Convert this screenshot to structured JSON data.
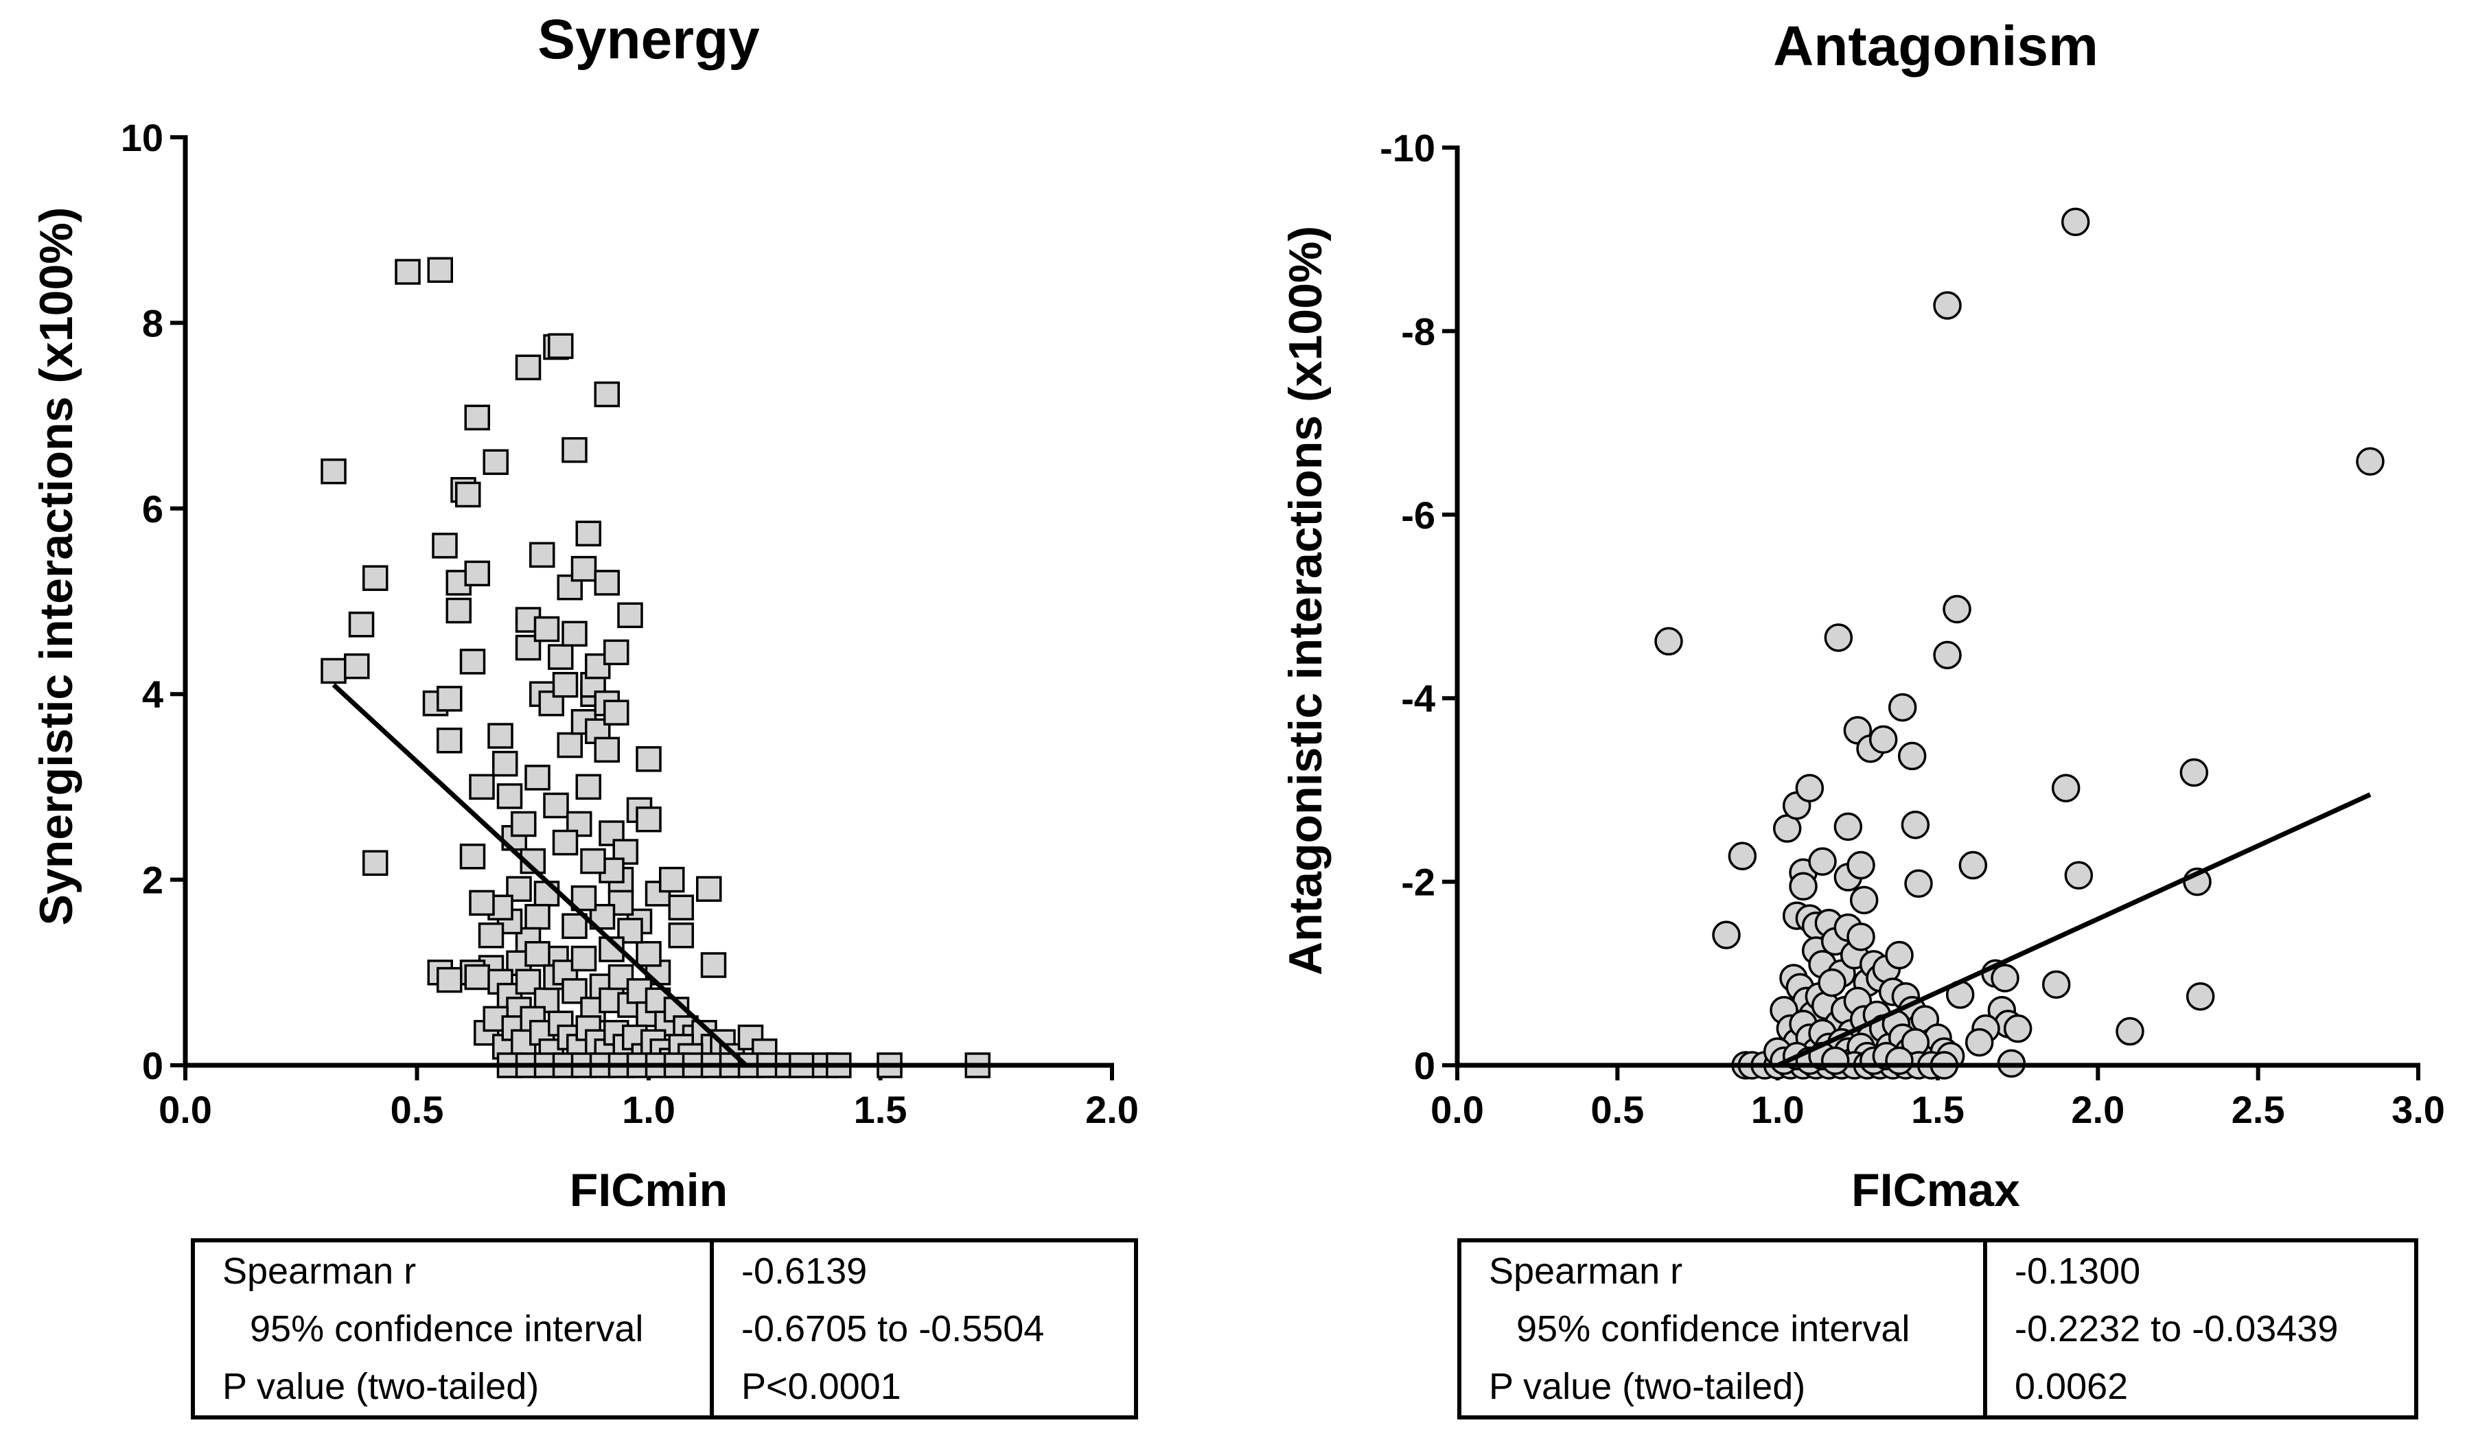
{
  "chart_data": [
    {
      "type": "scatter",
      "title": "Synergy",
      "xlabel": "FICmin",
      "ylabel": "Synergistic interactions (x100%)",
      "xlim": [
        0.0,
        2.0
      ],
      "ylim": [
        0,
        10
      ],
      "y_reversed": false,
      "marker": "square",
      "xticks": [
        "0.0",
        "0.5",
        "1.0",
        "1.5",
        "2.0"
      ],
      "yticks": [
        "0",
        "2",
        "4",
        "6",
        "8",
        "10"
      ],
      "fit_line": {
        "x": [
          0.32,
          1.21
        ],
        "y": [
          4.1,
          0.0
        ]
      },
      "points": [
        [
          0.32,
          6.4
        ],
        [
          0.32,
          4.25
        ],
        [
          0.37,
          4.3
        ],
        [
          0.38,
          4.75
        ],
        [
          0.41,
          5.25
        ],
        [
          0.41,
          2.18
        ],
        [
          0.48,
          8.55
        ],
        [
          0.55,
          8.57
        ],
        [
          0.54,
          3.9
        ],
        [
          0.56,
          5.6
        ],
        [
          0.57,
          3.95
        ],
        [
          0.57,
          3.5
        ],
        [
          0.59,
          5.2
        ],
        [
          0.59,
          4.9
        ],
        [
          0.6,
          6.2
        ],
        [
          0.61,
          6.15
        ],
        [
          0.62,
          2.25
        ],
        [
          0.62,
          4.35
        ],
        [
          0.63,
          5.3
        ],
        [
          0.63,
          6.98
        ],
        [
          0.64,
          3.0
        ],
        [
          0.67,
          6.5
        ],
        [
          0.68,
          3.55
        ],
        [
          0.69,
          3.25
        ],
        [
          0.7,
          2.9
        ],
        [
          0.71,
          2.45
        ],
        [
          0.72,
          1.9
        ],
        [
          0.73,
          2.6
        ],
        [
          0.74,
          7.52
        ],
        [
          0.74,
          4.8
        ],
        [
          0.74,
          4.5
        ],
        [
          0.75,
          2.2
        ],
        [
          0.76,
          3.1
        ],
        [
          0.77,
          5.5
        ],
        [
          0.77,
          4.0
        ],
        [
          0.78,
          4.7
        ],
        [
          0.79,
          3.9
        ],
        [
          0.8,
          7.74
        ],
        [
          0.8,
          2.8
        ],
        [
          0.81,
          7.75
        ],
        [
          0.81,
          4.4
        ],
        [
          0.82,
          4.1
        ],
        [
          0.83,
          5.15
        ],
        [
          0.83,
          3.45
        ],
        [
          0.84,
          4.65
        ],
        [
          0.84,
          6.63
        ],
        [
          0.85,
          2.6
        ],
        [
          0.86,
          3.7
        ],
        [
          0.86,
          5.35
        ],
        [
          0.87,
          5.73
        ],
        [
          0.87,
          3.0
        ],
        [
          0.88,
          4.0
        ],
        [
          0.88,
          4.1
        ],
        [
          0.89,
          3.6
        ],
        [
          0.89,
          4.3
        ],
        [
          0.91,
          7.23
        ],
        [
          0.91,
          5.2
        ],
        [
          0.91,
          3.9
        ],
        [
          0.91,
          3.4
        ],
        [
          0.92,
          2.5
        ],
        [
          0.93,
          3.8
        ],
        [
          0.93,
          4.45
        ],
        [
          0.94,
          2.0
        ],
        [
          0.95,
          2.3
        ],
        [
          0.96,
          4.85
        ],
        [
          0.98,
          2.75
        ],
        [
          1.0,
          3.3
        ],
        [
          1.0,
          2.65
        ],
        [
          1.02,
          1.85
        ],
        [
          1.05,
          2.0
        ],
        [
          1.07,
          1.7
        ],
        [
          1.07,
          1.4
        ],
        [
          1.13,
          1.9
        ],
        [
          1.14,
          1.08
        ],
        [
          1.02,
          1.0
        ],
        [
          0.98,
          1.55
        ],
        [
          1.0,
          1.2
        ],
        [
          0.96,
          1.45
        ],
        [
          0.94,
          1.75
        ],
        [
          0.92,
          1.25
        ],
        [
          0.92,
          2.1
        ],
        [
          0.9,
          1.6
        ],
        [
          0.88,
          2.2
        ],
        [
          0.86,
          1.8
        ],
        [
          0.84,
          1.5
        ],
        [
          0.82,
          2.4
        ],
        [
          0.8,
          1.15
        ],
        [
          0.78,
          1.85
        ],
        [
          0.76,
          1.6
        ],
        [
          0.74,
          1.35
        ],
        [
          0.72,
          1.1
        ],
        [
          0.7,
          1.55
        ],
        [
          0.68,
          1.7
        ],
        [
          0.66,
          1.05
        ],
        [
          0.64,
          1.75
        ],
        [
          0.62,
          1.0
        ],
        [
          0.55,
          1.0
        ],
        [
          0.57,
          0.92
        ],
        [
          0.63,
          0.95
        ],
        [
          0.66,
          1.4
        ],
        [
          0.68,
          0.9
        ],
        [
          0.7,
          0.75
        ],
        [
          0.72,
          0.6
        ],
        [
          0.74,
          0.9
        ],
        [
          0.76,
          1.2
        ],
        [
          0.78,
          0.7
        ],
        [
          0.8,
          0.95
        ],
        [
          0.82,
          1.0
        ],
        [
          0.84,
          0.8
        ],
        [
          0.86,
          1.15
        ],
        [
          0.88,
          0.6
        ],
        [
          0.9,
          0.85
        ],
        [
          0.92,
          0.7
        ],
        [
          0.94,
          0.95
        ],
        [
          0.96,
          0.65
        ],
        [
          0.98,
          0.8
        ],
        [
          1.0,
          0.55
        ],
        [
          1.02,
          0.7
        ],
        [
          1.04,
          0.45
        ],
        [
          1.06,
          0.6
        ],
        [
          1.08,
          0.4
        ],
        [
          1.1,
          0.3
        ],
        [
          1.12,
          0.35
        ],
        [
          1.14,
          0.2
        ],
        [
          1.16,
          0.25
        ],
        [
          1.18,
          0.1
        ],
        [
          1.22,
          0.3
        ],
        [
          1.25,
          0.15
        ],
        [
          0.65,
          0.35
        ],
        [
          0.67,
          0.5
        ],
        [
          0.69,
          0.2
        ],
        [
          0.71,
          0.4
        ],
        [
          0.73,
          0.25
        ],
        [
          0.75,
          0.5
        ],
        [
          0.77,
          0.35
        ],
        [
          0.79,
          0.15
        ],
        [
          0.81,
          0.45
        ],
        [
          0.83,
          0.3
        ],
        [
          0.85,
          0.2
        ],
        [
          0.87,
          0.4
        ],
        [
          0.89,
          0.25
        ],
        [
          0.91,
          0.15
        ],
        [
          0.93,
          0.35
        ],
        [
          0.95,
          0.2
        ],
        [
          0.97,
          0.3
        ],
        [
          0.99,
          0.1
        ],
        [
          1.01,
          0.25
        ],
        [
          1.03,
          0.15
        ],
        [
          1.05,
          0.05
        ],
        [
          1.07,
          0.2
        ],
        [
          1.09,
          0.1
        ],
        [
          0.7,
          0.0
        ],
        [
          0.74,
          0.0
        ],
        [
          0.78,
          0.0
        ],
        [
          0.82,
          0.0
        ],
        [
          0.86,
          0.0
        ],
        [
          0.9,
          0.0
        ],
        [
          0.94,
          0.0
        ],
        [
          0.98,
          0.0
        ],
        [
          1.02,
          0.0
        ],
        [
          1.06,
          0.0
        ],
        [
          1.1,
          0.0
        ],
        [
          1.14,
          0.0
        ],
        [
          1.18,
          0.0
        ],
        [
          1.22,
          0.0
        ],
        [
          1.26,
          0.0
        ],
        [
          1.3,
          0.0
        ],
        [
          1.33,
          0.0
        ],
        [
          1.38,
          0.0
        ],
        [
          1.41,
          0.0
        ],
        [
          1.52,
          0.0
        ],
        [
          1.71,
          0.0
        ]
      ],
      "stats": {
        "rows": [
          {
            "label": "Spearman r",
            "value": "-0.6139"
          },
          {
            "label": "95% confidence interval",
            "value": "-0.6705 to -0.5504"
          },
          {
            "label": "P value (two-tailed)",
            "value": "P<0.0001"
          }
        ]
      }
    },
    {
      "type": "scatter",
      "title": "Antagonism",
      "xlabel": "FICmax",
      "ylabel": "Antagonistic interactions (x100%)",
      "xlim": [
        0.0,
        3.0
      ],
      "ylim": [
        0,
        -10
      ],
      "y_reversed": true,
      "marker": "circle",
      "xticks": [
        "0.0",
        "0.5",
        "1.0",
        "1.5",
        "2.0",
        "2.5",
        "3.0"
      ],
      "yticks": [
        "0",
        "-2",
        "-4",
        "-6",
        "-8",
        "-10"
      ],
      "fit_line": {
        "x": [
          1.0,
          2.85
        ],
        "y": [
          0.0,
          -2.95
        ]
      },
      "points": [
        [
          0.66,
          -4.62
        ],
        [
          0.84,
          -1.42
        ],
        [
          0.89,
          -2.28
        ],
        [
          1.03,
          -2.58
        ],
        [
          1.06,
          -2.83
        ],
        [
          1.1,
          -3.02
        ],
        [
          1.06,
          -1.63
        ],
        [
          1.08,
          -2.1
        ],
        [
          1.08,
          -1.95
        ],
        [
          1.1,
          -1.6
        ],
        [
          1.12,
          -1.52
        ],
        [
          1.14,
          -2.22
        ],
        [
          1.16,
          -1.55
        ],
        [
          1.19,
          -4.66
        ],
        [
          1.22,
          -2.6
        ],
        [
          1.22,
          -2.05
        ],
        [
          1.25,
          -3.65
        ],
        [
          1.26,
          -2.18
        ],
        [
          1.27,
          -1.8
        ],
        [
          1.29,
          -3.45
        ],
        [
          1.33,
          -3.55
        ],
        [
          1.39,
          -3.9
        ],
        [
          1.42,
          -3.37
        ],
        [
          1.43,
          -2.62
        ],
        [
          1.44,
          -1.98
        ],
        [
          1.53,
          -8.28
        ],
        [
          1.53,
          -4.47
        ],
        [
          1.56,
          -4.97
        ],
        [
          1.61,
          -2.18
        ],
        [
          1.57,
          -0.77
        ],
        [
          1.68,
          -1.0
        ],
        [
          1.71,
          -0.95
        ],
        [
          1.7,
          -0.6
        ],
        [
          1.72,
          -0.45
        ],
        [
          1.75,
          -0.4
        ],
        [
          1.65,
          -0.4
        ],
        [
          1.63,
          -0.25
        ],
        [
          1.73,
          -0.02
        ],
        [
          1.87,
          -0.88
        ],
        [
          1.9,
          -3.02
        ],
        [
          1.93,
          -9.19
        ],
        [
          1.94,
          -2.07
        ],
        [
          2.1,
          -0.37
        ],
        [
          2.3,
          -3.19
        ],
        [
          2.31,
          -2.0
        ],
        [
          2.32,
          -0.75
        ],
        [
          2.85,
          -6.58
        ],
        [
          1.12,
          -1.25
        ],
        [
          1.14,
          -1.1
        ],
        [
          1.18,
          -1.35
        ],
        [
          1.2,
          -1.0
        ],
        [
          1.22,
          -1.5
        ],
        [
          1.24,
          -1.2
        ],
        [
          1.26,
          -1.4
        ],
        [
          1.28,
          -0.9
        ],
        [
          1.3,
          -1.1
        ],
        [
          1.32,
          -0.95
        ],
        [
          1.34,
          -1.05
        ],
        [
          1.36,
          -0.8
        ],
        [
          1.38,
          -1.2
        ],
        [
          1.4,
          -0.75
        ],
        [
          1.42,
          -0.6
        ],
        [
          1.44,
          -0.4
        ],
        [
          1.46,
          -0.5
        ],
        [
          1.48,
          -0.25
        ],
        [
          1.5,
          -0.3
        ],
        [
          1.52,
          -0.15
        ],
        [
          1.54,
          -0.1
        ],
        [
          1.05,
          -0.95
        ],
        [
          1.07,
          -0.85
        ],
        [
          1.09,
          -0.7
        ],
        [
          1.11,
          -0.55
        ],
        [
          1.13,
          -0.75
        ],
        [
          1.15,
          -0.65
        ],
        [
          1.17,
          -0.9
        ],
        [
          1.19,
          -0.45
        ],
        [
          1.21,
          -0.6
        ],
        [
          1.23,
          -0.35
        ],
        [
          1.25,
          -0.7
        ],
        [
          1.27,
          -0.5
        ],
        [
          1.29,
          -0.3
        ],
        [
          1.31,
          -0.55
        ],
        [
          1.33,
          -0.4
        ],
        [
          1.35,
          -0.2
        ],
        [
          1.37,
          -0.45
        ],
        [
          1.39,
          -0.3
        ],
        [
          1.41,
          -0.15
        ],
        [
          1.43,
          -0.25
        ],
        [
          1.02,
          -0.6
        ],
        [
          1.04,
          -0.4
        ],
        [
          1.06,
          -0.25
        ],
        [
          1.08,
          -0.45
        ],
        [
          1.1,
          -0.3
        ],
        [
          1.12,
          -0.15
        ],
        [
          1.14,
          -0.35
        ],
        [
          1.16,
          -0.2
        ],
        [
          1.18,
          -0.1
        ],
        [
          1.2,
          -0.25
        ],
        [
          1.22,
          -0.15
        ],
        [
          1.24,
          -0.05
        ],
        [
          1.26,
          -0.2
        ],
        [
          1.28,
          -0.1
        ],
        [
          0.9,
          0.0
        ],
        [
          0.92,
          0.0
        ],
        [
          0.96,
          0.0
        ],
        [
          1.0,
          0.0
        ],
        [
          1.04,
          0.0
        ],
        [
          1.08,
          0.0
        ],
        [
          1.12,
          0.0
        ],
        [
          1.16,
          0.0
        ],
        [
          1.2,
          0.0
        ],
        [
          1.24,
          0.0
        ],
        [
          1.28,
          0.0
        ],
        [
          1.32,
          0.0
        ],
        [
          1.36,
          0.0
        ],
        [
          1.4,
          0.0
        ],
        [
          1.44,
          0.0
        ],
        [
          1.48,
          0.0
        ],
        [
          1.52,
          0.0
        ],
        [
          1.0,
          -0.15
        ],
        [
          1.02,
          -0.05
        ],
        [
          1.06,
          -0.1
        ],
        [
          1.1,
          -0.05
        ],
        [
          1.14,
          -0.1
        ],
        [
          1.18,
          -0.05
        ],
        [
          1.3,
          -0.05
        ],
        [
          1.34,
          -0.1
        ],
        [
          1.38,
          -0.05
        ]
      ],
      "stats": {
        "rows": [
          {
            "label": "Spearman r",
            "value": "-0.1300"
          },
          {
            "label": "95% confidence interval",
            "value": "-0.2232 to -0.03439"
          },
          {
            "label": "P value (two-tailed)",
            "value": "0.0062"
          }
        ]
      }
    }
  ]
}
